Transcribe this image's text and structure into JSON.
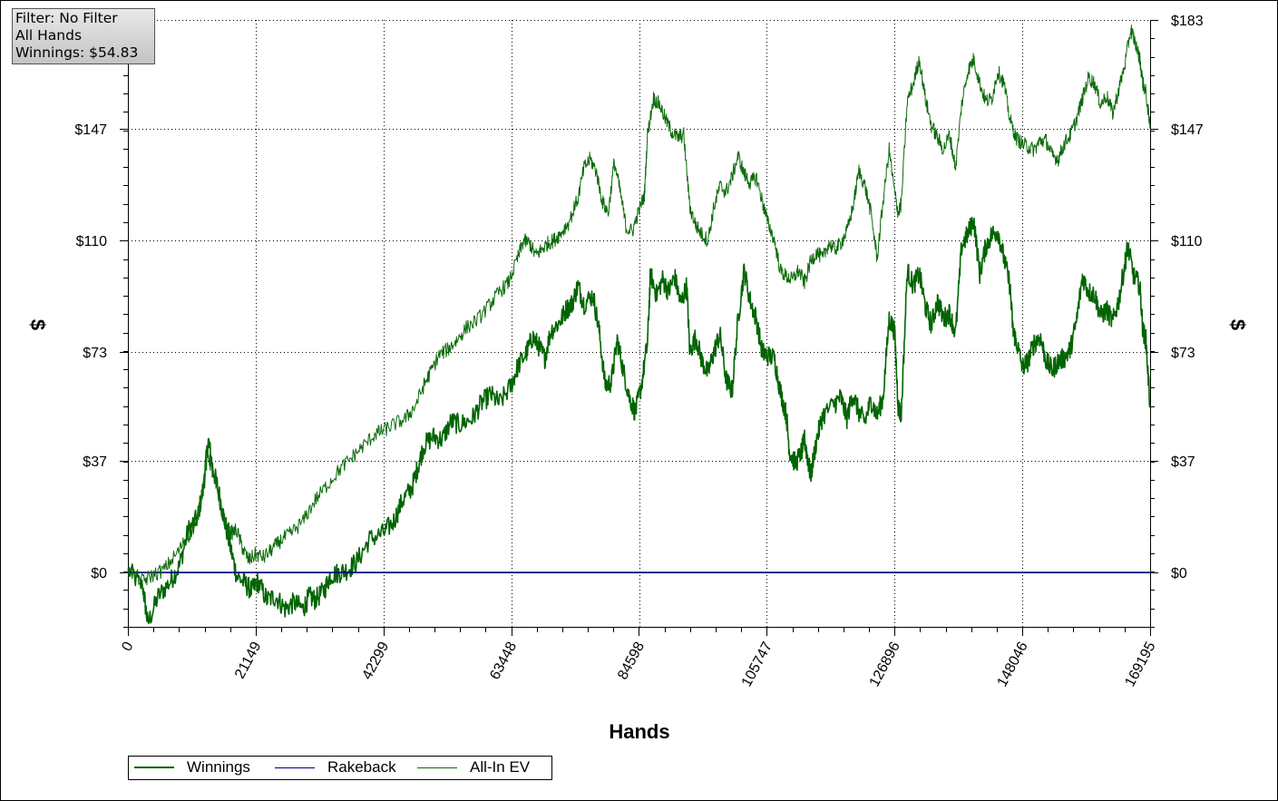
{
  "filter_box": {
    "line1": "Filter: No Filter",
    "line2": "All Hands",
    "line3": "Winnings: $54.83"
  },
  "legend": {
    "winnings": "Winnings",
    "rakeback": "Rakeback",
    "allin_ev": "All-In EV"
  },
  "colors": {
    "winnings": "#006400",
    "rakeback": "#000080",
    "allin_ev": "#0b6b0b",
    "grid": "#000000"
  },
  "chart_data": {
    "type": "line",
    "xlabel": "Hands",
    "ylabel": "$",
    "xlim": [
      0,
      169195
    ],
    "ylim": [
      -18,
      183
    ],
    "x_ticks": [
      0,
      21149,
      42299,
      63448,
      84598,
      105747,
      126896,
      148046,
      169195
    ],
    "x_tick_labels": [
      "0",
      "21149",
      "42299",
      "63448",
      "84598",
      "105747",
      "126896",
      "148046",
      "169195"
    ],
    "y_ticks": [
      0,
      37,
      73,
      110,
      147,
      183
    ],
    "y_tick_labels": [
      "$0",
      "$37",
      "$73",
      "$110",
      "$147",
      "$183"
    ],
    "grid": "dotted",
    "legend_position": "bottom-left",
    "series": [
      {
        "name": "Winnings",
        "points": [
          [
            0,
            1
          ],
          [
            2500,
            -5
          ],
          [
            3300,
            -17
          ],
          [
            5000,
            -8
          ],
          [
            7000,
            -3
          ],
          [
            8500,
            2
          ],
          [
            10000,
            14
          ],
          [
            11500,
            18
          ],
          [
            12500,
            28
          ],
          [
            13300,
            44
          ],
          [
            14000,
            35
          ],
          [
            15000,
            27
          ],
          [
            16000,
            17
          ],
          [
            17000,
            8
          ],
          [
            18000,
            -1
          ],
          [
            19500,
            -4
          ],
          [
            20500,
            -6
          ],
          [
            21500,
            -3
          ],
          [
            23000,
            -9
          ],
          [
            24500,
            -8
          ],
          [
            26000,
            -12
          ],
          [
            27500,
            -10
          ],
          [
            29000,
            -12
          ],
          [
            30000,
            -8
          ],
          [
            31000,
            -9
          ],
          [
            32500,
            -6
          ],
          [
            33500,
            -1
          ],
          [
            35000,
            0
          ],
          [
            36500,
            1
          ],
          [
            38000,
            4
          ],
          [
            40000,
            11
          ],
          [
            42300,
            13
          ],
          [
            44000,
            17
          ],
          [
            45500,
            24
          ],
          [
            47000,
            28
          ],
          [
            48000,
            35
          ],
          [
            49000,
            42
          ],
          [
            50500,
            45
          ],
          [
            52000,
            44
          ],
          [
            53500,
            50
          ],
          [
            55000,
            49
          ],
          [
            57000,
            51
          ],
          [
            58500,
            56
          ],
          [
            60000,
            59
          ],
          [
            61500,
            56
          ],
          [
            63448,
            62
          ],
          [
            64500,
            68
          ],
          [
            66000,
            73
          ],
          [
            67000,
            78
          ],
          [
            68000,
            75
          ],
          [
            69000,
            71
          ],
          [
            70000,
            80
          ],
          [
            71500,
            83
          ],
          [
            72500,
            87
          ],
          [
            73500,
            89
          ],
          [
            74500,
            95
          ],
          [
            75500,
            89
          ],
          [
            77000,
            92
          ],
          [
            78000,
            80
          ],
          [
            79000,
            62
          ],
          [
            80000,
            63
          ],
          [
            81000,
            77
          ],
          [
            82000,
            67
          ],
          [
            83000,
            58
          ],
          [
            84000,
            53
          ],
          [
            85000,
            62
          ],
          [
            86000,
            76
          ],
          [
            86500,
            99
          ],
          [
            87500,
            92
          ],
          [
            88500,
            97
          ],
          [
            89500,
            93
          ],
          [
            90500,
            98
          ],
          [
            91500,
            89
          ],
          [
            92500,
            95
          ],
          [
            93000,
            73
          ],
          [
            94000,
            78
          ],
          [
            95000,
            70
          ],
          [
            96000,
            66
          ],
          [
            97000,
            73
          ],
          [
            98000,
            79
          ],
          [
            99000,
            64
          ],
          [
            100000,
            60
          ],
          [
            101000,
            84
          ],
          [
            102000,
            100
          ],
          [
            103000,
            90
          ],
          [
            104000,
            84
          ],
          [
            105000,
            73
          ],
          [
            105747,
            72
          ],
          [
            107000,
            71
          ],
          [
            108000,
            60
          ],
          [
            109000,
            52
          ],
          [
            109500,
            40
          ],
          [
            110500,
            36
          ],
          [
            111500,
            40
          ],
          [
            112000,
            44
          ],
          [
            112500,
            38
          ],
          [
            113000,
            32
          ],
          [
            114000,
            44
          ],
          [
            115000,
            52
          ],
          [
            117000,
            56
          ],
          [
            118000,
            58
          ],
          [
            119000,
            51
          ],
          [
            120000,
            59
          ],
          [
            121000,
            53
          ],
          [
            122000,
            50
          ],
          [
            123000,
            57
          ],
          [
            124000,
            52
          ],
          [
            125000,
            58
          ],
          [
            126000,
            84
          ],
          [
            126896,
            80
          ],
          [
            127500,
            55
          ],
          [
            128000,
            52
          ],
          [
            129000,
            100
          ],
          [
            130000,
            95
          ],
          [
            131000,
            99
          ],
          [
            132000,
            88
          ],
          [
            133000,
            82
          ],
          [
            134000,
            90
          ],
          [
            135000,
            84
          ],
          [
            136000,
            86
          ],
          [
            137000,
            79
          ],
          [
            138000,
            108
          ],
          [
            139000,
            112
          ],
          [
            140000,
            117
          ],
          [
            141000,
            99
          ],
          [
            142000,
            108
          ],
          [
            143000,
            112
          ],
          [
            144000,
            113
          ],
          [
            145000,
            104
          ],
          [
            146000,
            95
          ],
          [
            146500,
            80
          ],
          [
            147000,
            77
          ],
          [
            148046,
            68
          ],
          [
            149000,
            70
          ],
          [
            150000,
            76
          ],
          [
            151000,
            78
          ],
          [
            152000,
            70
          ],
          [
            153000,
            67
          ],
          [
            154000,
            70
          ],
          [
            155000,
            71
          ],
          [
            156000,
            74
          ],
          [
            157000,
            83
          ],
          [
            158000,
            98
          ],
          [
            159000,
            93
          ],
          [
            160000,
            92
          ],
          [
            161000,
            85
          ],
          [
            162000,
            87
          ],
          [
            163000,
            83
          ],
          [
            164000,
            90
          ],
          [
            165000,
            102
          ],
          [
            165500,
            108
          ],
          [
            166500,
            98
          ],
          [
            167500,
            95
          ],
          [
            168000,
            80
          ],
          [
            168500,
            77
          ],
          [
            169195,
            55
          ]
        ]
      },
      {
        "name": "Rakeback",
        "points": [
          [
            0,
            0
          ],
          [
            169195,
            0
          ]
        ]
      },
      {
        "name": "All-In EV",
        "points": [
          [
            0,
            1
          ],
          [
            2500,
            -3
          ],
          [
            4000,
            -1
          ],
          [
            6000,
            1
          ],
          [
            8000,
            6
          ],
          [
            10000,
            12
          ],
          [
            11500,
            17
          ],
          [
            12500,
            30
          ],
          [
            13300,
            39
          ],
          [
            14000,
            33
          ],
          [
            15000,
            25
          ],
          [
            16000,
            17
          ],
          [
            17000,
            13
          ],
          [
            18000,
            14
          ],
          [
            19000,
            8
          ],
          [
            20000,
            4
          ],
          [
            21149,
            6
          ],
          [
            22500,
            5
          ],
          [
            24000,
            8
          ],
          [
            25500,
            11
          ],
          [
            27000,
            13
          ],
          [
            29000,
            17
          ],
          [
            31000,
            24
          ],
          [
            33000,
            29
          ],
          [
            35000,
            34
          ],
          [
            37000,
            38
          ],
          [
            39000,
            42
          ],
          [
            41000,
            46
          ],
          [
            42299,
            47
          ],
          [
            44000,
            49
          ],
          [
            46000,
            51
          ],
          [
            47500,
            55
          ],
          [
            49000,
            62
          ],
          [
            50000,
            66
          ],
          [
            51500,
            72
          ],
          [
            53000,
            74
          ],
          [
            54500,
            77
          ],
          [
            56000,
            81
          ],
          [
            58000,
            84
          ],
          [
            60000,
            89
          ],
          [
            61500,
            93
          ],
          [
            63000,
            96
          ],
          [
            64500,
            104
          ],
          [
            65500,
            110
          ],
          [
            66500,
            109
          ],
          [
            67500,
            105
          ],
          [
            68500,
            107
          ],
          [
            69500,
            109
          ],
          [
            70500,
            110
          ],
          [
            71500,
            112
          ],
          [
            73000,
            116
          ],
          [
            74500,
            124
          ],
          [
            75500,
            134
          ],
          [
            76500,
            137
          ],
          [
            77500,
            133
          ],
          [
            78500,
            123
          ],
          [
            79500,
            119
          ],
          [
            80500,
            136
          ],
          [
            81500,
            126
          ],
          [
            82500,
            114
          ],
          [
            83500,
            113
          ],
          [
            84598,
            120
          ],
          [
            85500,
            125
          ],
          [
            86000,
            145
          ],
          [
            87000,
            157
          ],
          [
            88000,
            155
          ],
          [
            89000,
            150
          ],
          [
            90000,
            146
          ],
          [
            91000,
            144
          ],
          [
            92000,
            145
          ],
          [
            93000,
            121
          ],
          [
            94000,
            115
          ],
          [
            95000,
            112
          ],
          [
            96000,
            110
          ],
          [
            97000,
            121
          ],
          [
            98000,
            128
          ],
          [
            99000,
            126
          ],
          [
            100000,
            131
          ],
          [
            101000,
            138
          ],
          [
            102000,
            132
          ],
          [
            103000,
            129
          ],
          [
            104000,
            131
          ],
          [
            105000,
            123
          ],
          [
            105747,
            117
          ],
          [
            107000,
            110
          ],
          [
            108000,
            100
          ],
          [
            109000,
            98
          ],
          [
            110000,
            97
          ],
          [
            111000,
            100
          ],
          [
            112000,
            96
          ],
          [
            113000,
            103
          ],
          [
            114000,
            106
          ],
          [
            115000,
            104
          ],
          [
            116000,
            109
          ],
          [
            117000,
            107
          ],
          [
            118000,
            109
          ],
          [
            119000,
            113
          ],
          [
            120000,
            121
          ],
          [
            121000,
            133
          ],
          [
            122000,
            128
          ],
          [
            123000,
            119
          ],
          [
            124000,
            104
          ],
          [
            125000,
            123
          ],
          [
            126000,
            140
          ],
          [
            126896,
            126
          ],
          [
            127500,
            119
          ],
          [
            128000,
            122
          ],
          [
            129000,
            156
          ],
          [
            130000,
            162
          ],
          [
            131000,
            170
          ],
          [
            132000,
            157
          ],
          [
            133000,
            148
          ],
          [
            134000,
            144
          ],
          [
            135000,
            140
          ],
          [
            136000,
            145
          ],
          [
            137000,
            134
          ],
          [
            138000,
            155
          ],
          [
            139000,
            166
          ],
          [
            140000,
            170
          ],
          [
            141000,
            162
          ],
          [
            142000,
            156
          ],
          [
            143000,
            157
          ],
          [
            144000,
            166
          ],
          [
            145000,
            162
          ],
          [
            146000,
            150
          ],
          [
            147000,
            144
          ],
          [
            148046,
            142
          ],
          [
            149000,
            141
          ],
          [
            150000,
            140
          ],
          [
            151000,
            143
          ],
          [
            152000,
            143
          ],
          [
            153000,
            138
          ],
          [
            154000,
            137
          ],
          [
            155000,
            142
          ],
          [
            156000,
            145
          ],
          [
            157000,
            150
          ],
          [
            158000,
            157
          ],
          [
            159000,
            164
          ],
          [
            160000,
            162
          ],
          [
            161000,
            155
          ],
          [
            162000,
            158
          ],
          [
            163000,
            152
          ],
          [
            164000,
            160
          ],
          [
            165000,
            168
          ],
          [
            166000,
            180
          ],
          [
            166500,
            177
          ],
          [
            167500,
            170
          ],
          [
            168000,
            162
          ],
          [
            168500,
            159
          ],
          [
            169195,
            147
          ]
        ]
      }
    ]
  }
}
